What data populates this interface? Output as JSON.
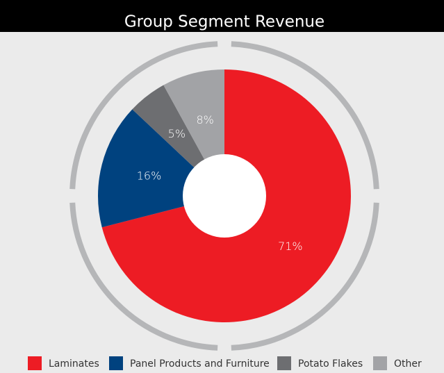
{
  "chart_data": {
    "type": "pie",
    "title": "Group Segment Revenue",
    "categories": [
      "Laminates",
      "Panel Products and Furniture",
      "Potato Flakes",
      "Other"
    ],
    "values": [
      71,
      16,
      5,
      8
    ],
    "value_labels": [
      "71%",
      "16%",
      "5%",
      "8%"
    ],
    "colors": [
      "#ed1c24",
      "#00427f",
      "#6d6e71",
      "#a2a3a6"
    ],
    "donut": true,
    "legend": "bottom"
  }
}
